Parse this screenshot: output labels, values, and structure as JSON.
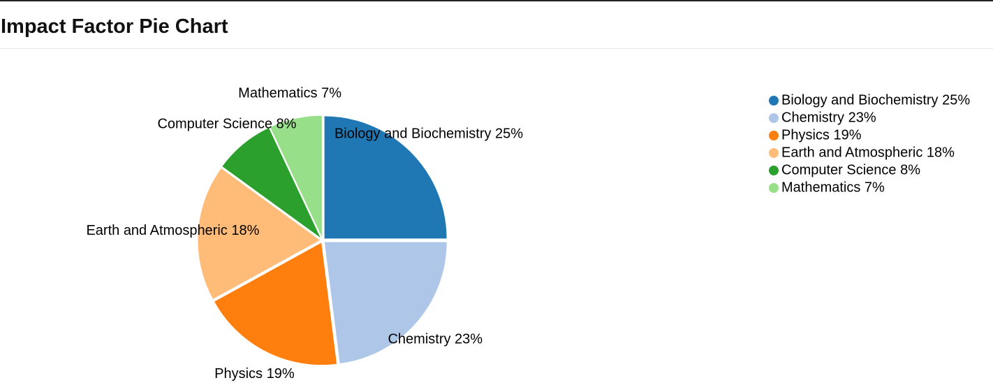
{
  "header": {
    "title": "Impact Factor Pie Chart"
  },
  "chart_data": {
    "type": "pie",
    "title": "Impact Factor Pie Chart",
    "legend_position": "top-right",
    "slices": [
      {
        "label": "Biology and Biochemistry",
        "value": 25,
        "display": "Biology and Biochemistry 25%",
        "color": "#1f77b4"
      },
      {
        "label": "Chemistry",
        "value": 23,
        "display": "Chemistry 23%",
        "color": "#aec7e8"
      },
      {
        "label": "Physics",
        "value": 19,
        "display": "Physics 19%",
        "color": "#ff7f0e"
      },
      {
        "label": "Earth and Atmospheric",
        "value": 18,
        "display": "Earth and Atmospheric 18%",
        "color": "#ffbb78"
      },
      {
        "label": "Computer Science",
        "value": 8,
        "display": "Computer Science 8%",
        "color": "#2ca02c"
      },
      {
        "label": "Mathematics",
        "value": 7,
        "display": "Mathematics 7%",
        "color": "#98df8a"
      }
    ]
  }
}
